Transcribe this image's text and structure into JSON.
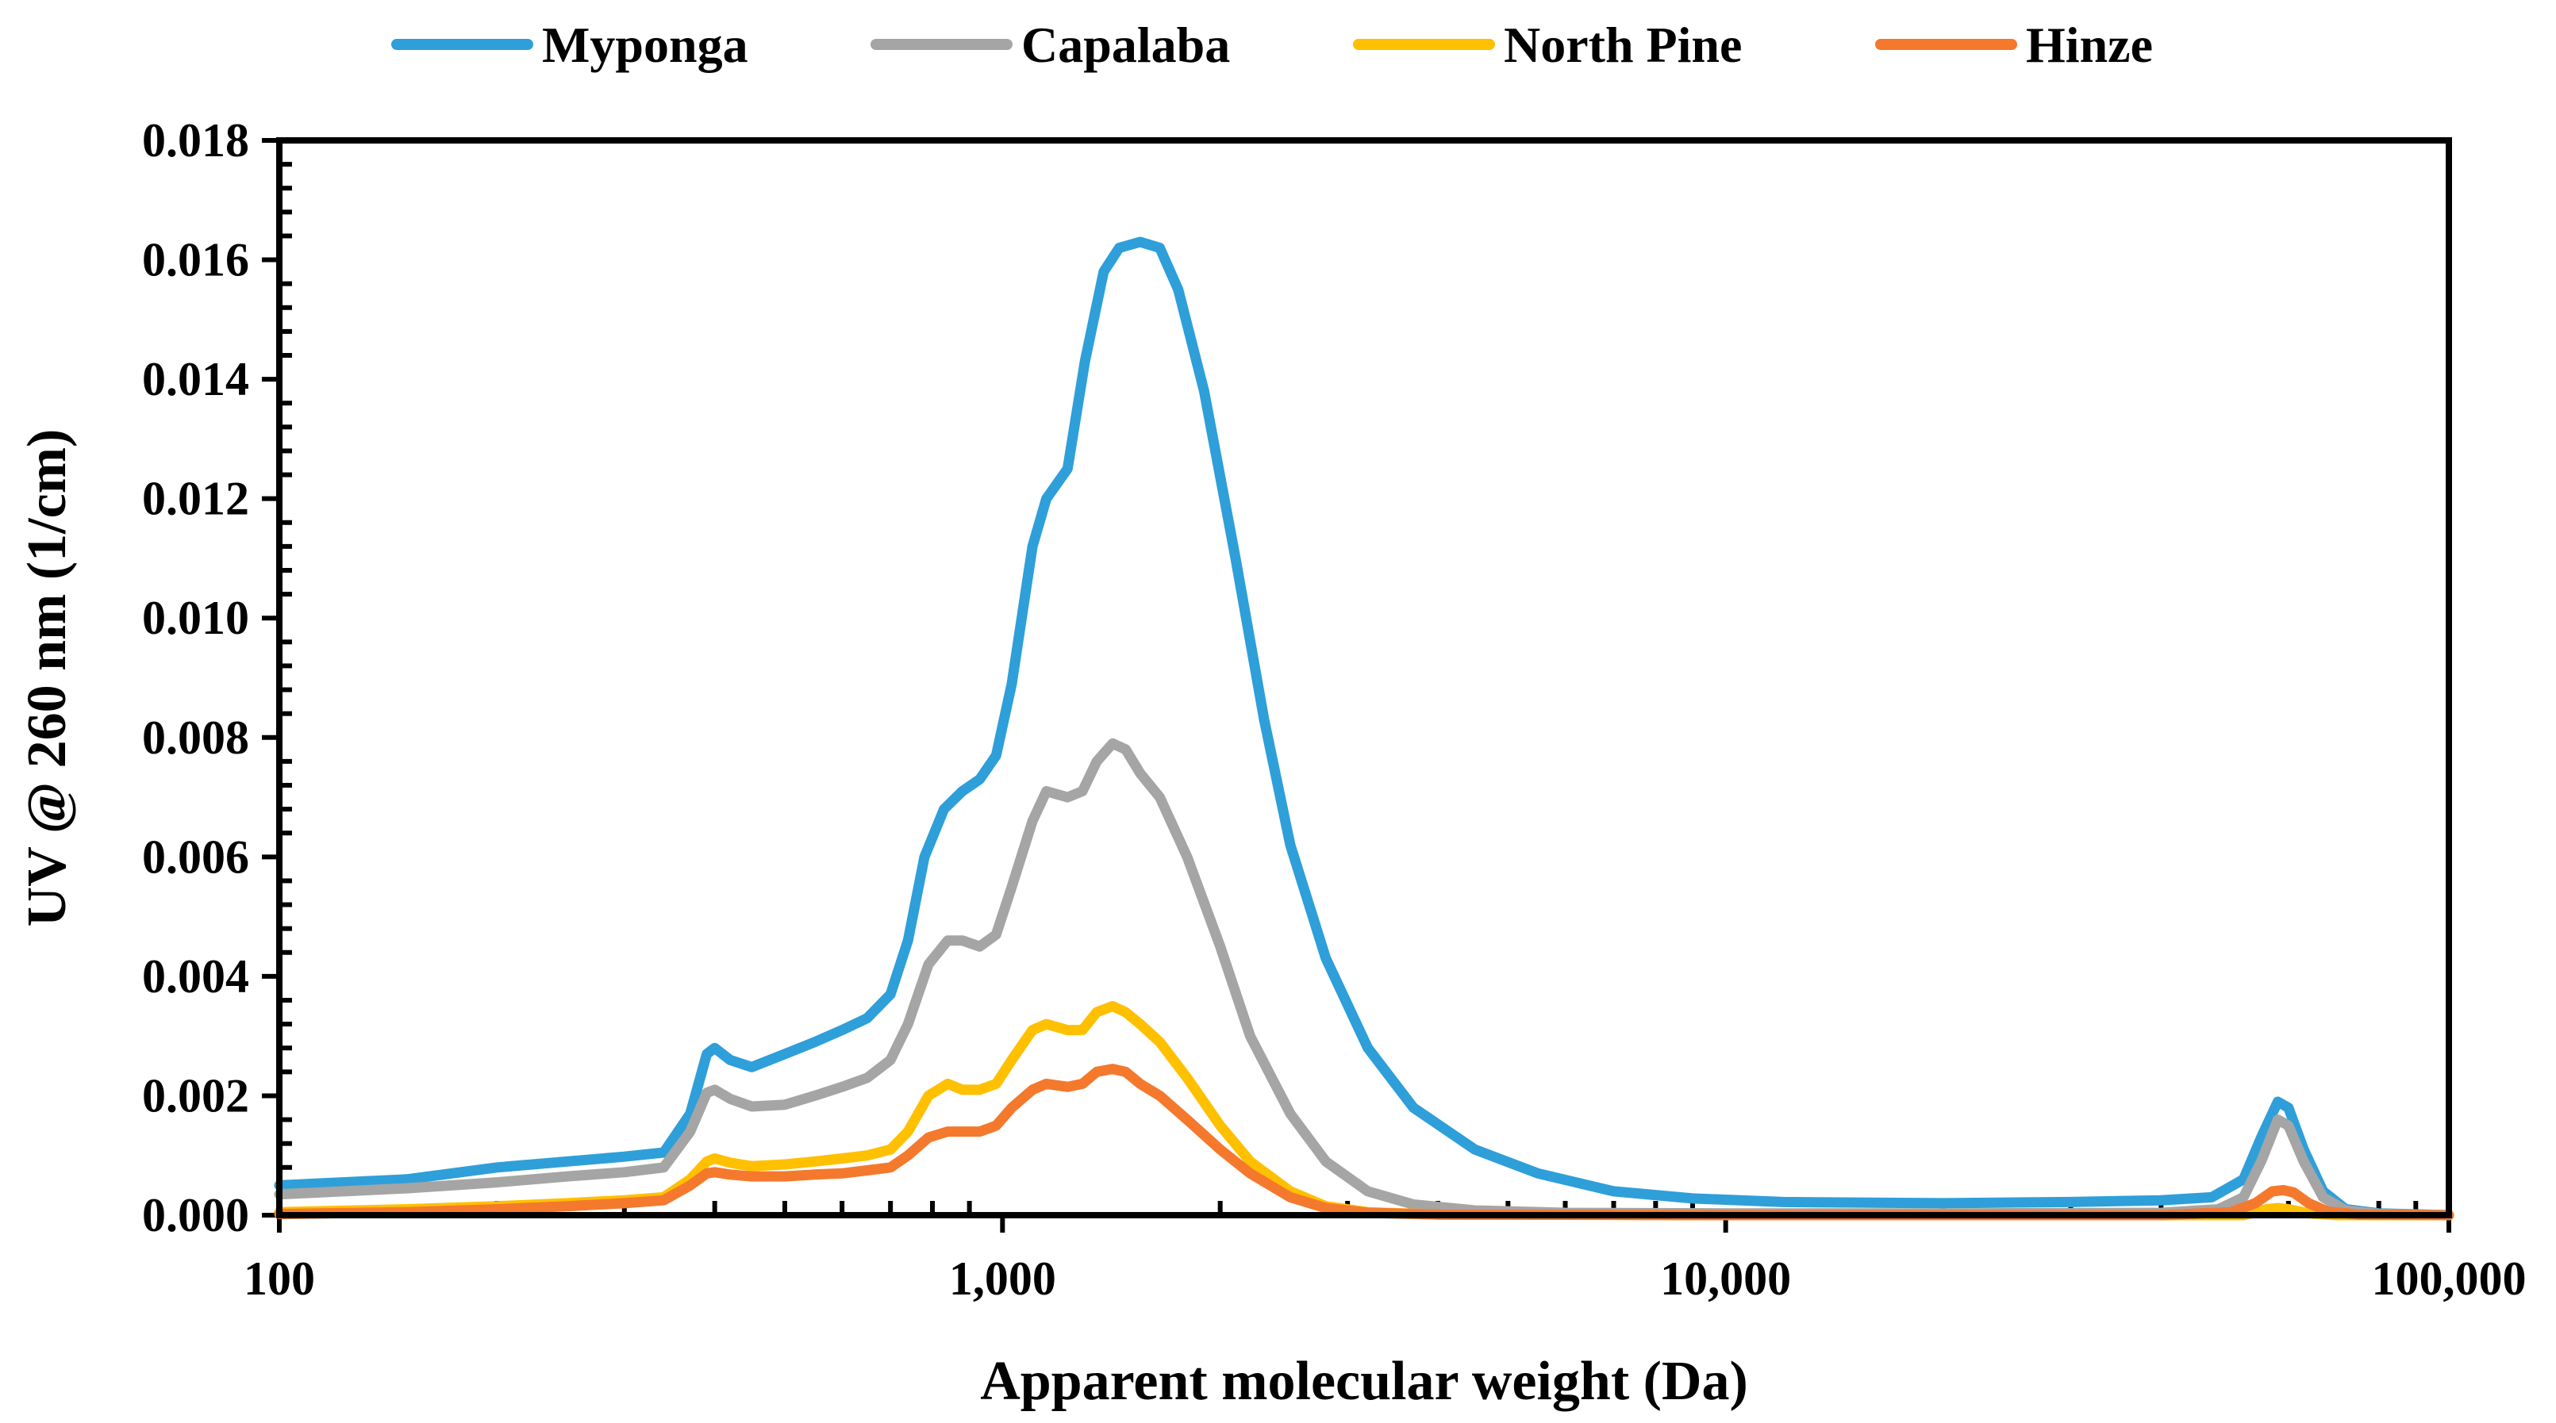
{
  "chart_data": {
    "type": "line",
    "title": "",
    "xlabel": "Apparent molecular weight (Da)",
    "ylabel": "UV @ 260 nm (1/cm)",
    "xscale": "log",
    "xlim": [
      100,
      100000
    ],
    "ylim": [
      0,
      0.018
    ],
    "xticks": [
      100,
      1000,
      10000,
      100000
    ],
    "xtick_labels": [
      "100",
      "1,000",
      "10,000",
      "100,000"
    ],
    "yticks": [
      0,
      0.002,
      0.004,
      0.006,
      0.008,
      0.01,
      0.012,
      0.014,
      0.016,
      0.018
    ],
    "ytick_labels": [
      "0.000",
      "0.002",
      "0.004",
      "0.006",
      "0.008",
      "0.010",
      "0.012",
      "0.014",
      "0.016",
      "0.018"
    ],
    "legend_position": "top-center",
    "grid": false,
    "series": [
      {
        "name": "Myponga",
        "color": "#2E9FD9",
        "points": [
          [
            100,
            0.0005
          ],
          [
            150,
            0.0006
          ],
          [
            200,
            0.0008
          ],
          [
            250,
            0.0009
          ],
          [
            300,
            0.00098
          ],
          [
            340,
            0.00105
          ],
          [
            370,
            0.0017
          ],
          [
            390,
            0.0027
          ],
          [
            400,
            0.0028
          ],
          [
            420,
            0.0026
          ],
          [
            450,
            0.00248
          ],
          [
            500,
            0.0027
          ],
          [
            550,
            0.0029
          ],
          [
            600,
            0.0031
          ],
          [
            650,
            0.0033
          ],
          [
            700,
            0.0037
          ],
          [
            740,
            0.0046
          ],
          [
            780,
            0.006
          ],
          [
            830,
            0.0068
          ],
          [
            880,
            0.0071
          ],
          [
            930,
            0.0073
          ],
          [
            980,
            0.0077
          ],
          [
            1030,
            0.0089
          ],
          [
            1100,
            0.0112
          ],
          [
            1150,
            0.012
          ],
          [
            1230,
            0.0125
          ],
          [
            1300,
            0.0143
          ],
          [
            1380,
            0.0158
          ],
          [
            1450,
            0.0162
          ],
          [
            1550,
            0.0163
          ],
          [
            1650,
            0.0162
          ],
          [
            1750,
            0.0155
          ],
          [
            1900,
            0.0138
          ],
          [
            2100,
            0.011
          ],
          [
            2300,
            0.0083
          ],
          [
            2500,
            0.0062
          ],
          [
            2800,
            0.0043
          ],
          [
            3200,
            0.0028
          ],
          [
            3700,
            0.0018
          ],
          [
            4500,
            0.0011
          ],
          [
            5500,
            0.0007
          ],
          [
            7000,
            0.0004
          ],
          [
            9000,
            0.00028
          ],
          [
            12000,
            0.00022
          ],
          [
            20000,
            0.0002
          ],
          [
            30000,
            0.00022
          ],
          [
            40000,
            0.00025
          ],
          [
            47000,
            0.0003
          ],
          [
            52000,
            0.0006
          ],
          [
            55000,
            0.0013
          ],
          [
            58000,
            0.0019
          ],
          [
            60000,
            0.0018
          ],
          [
            63000,
            0.0011
          ],
          [
            67000,
            0.0004
          ],
          [
            72000,
            0.0001
          ],
          [
            80000,
            3e-05
          ],
          [
            100000,
            0
          ]
        ]
      },
      {
        "name": "Capalaba",
        "color": "#A5A5A5",
        "points": [
          [
            100,
            0.00035
          ],
          [
            150,
            0.00045
          ],
          [
            200,
            0.00055
          ],
          [
            250,
            0.00065
          ],
          [
            300,
            0.00072
          ],
          [
            340,
            0.0008
          ],
          [
            370,
            0.0014
          ],
          [
            390,
            0.00205
          ],
          [
            400,
            0.0021
          ],
          [
            420,
            0.00195
          ],
          [
            450,
            0.00182
          ],
          [
            500,
            0.00185
          ],
          [
            550,
            0.002
          ],
          [
            600,
            0.00215
          ],
          [
            650,
            0.0023
          ],
          [
            700,
            0.0026
          ],
          [
            740,
            0.0032
          ],
          [
            790,
            0.0042
          ],
          [
            840,
            0.0046
          ],
          [
            880,
            0.0046
          ],
          [
            930,
            0.0045
          ],
          [
            980,
            0.0047
          ],
          [
            1030,
            0.0055
          ],
          [
            1100,
            0.0066
          ],
          [
            1150,
            0.0071
          ],
          [
            1230,
            0.007
          ],
          [
            1290,
            0.0071
          ],
          [
            1350,
            0.0076
          ],
          [
            1420,
            0.0079
          ],
          [
            1480,
            0.0078
          ],
          [
            1550,
            0.0074
          ],
          [
            1650,
            0.007
          ],
          [
            1800,
            0.006
          ],
          [
            2000,
            0.0045
          ],
          [
            2200,
            0.003
          ],
          [
            2500,
            0.0017
          ],
          [
            2800,
            0.0009
          ],
          [
            3200,
            0.0004
          ],
          [
            3700,
            0.00018
          ],
          [
            4500,
            8e-05
          ],
          [
            6000,
            4e-05
          ],
          [
            10000,
            3e-05
          ],
          [
            20000,
            3e-05
          ],
          [
            40000,
            4e-05
          ],
          [
            48000,
            0.0001
          ],
          [
            52000,
            0.0003
          ],
          [
            55000,
            0.0009
          ],
          [
            58000,
            0.0016
          ],
          [
            60000,
            0.0015
          ],
          [
            63000,
            0.0009
          ],
          [
            67000,
            0.0003
          ],
          [
            72000,
            8e-05
          ],
          [
            80000,
            2e-05
          ],
          [
            100000,
            0
          ]
        ]
      },
      {
        "name": "North Pine",
        "color": "#FFC000",
        "points": [
          [
            100,
            5e-05
          ],
          [
            150,
            0.0001
          ],
          [
            200,
            0.00015
          ],
          [
            250,
            0.0002
          ],
          [
            300,
            0.00025
          ],
          [
            340,
            0.0003
          ],
          [
            370,
            0.0006
          ],
          [
            390,
            0.0009
          ],
          [
            400,
            0.00095
          ],
          [
            420,
            0.00088
          ],
          [
            450,
            0.00082
          ],
          [
            500,
            0.00085
          ],
          [
            550,
            0.0009
          ],
          [
            600,
            0.00095
          ],
          [
            650,
            0.001
          ],
          [
            700,
            0.0011
          ],
          [
            740,
            0.0014
          ],
          [
            790,
            0.002
          ],
          [
            840,
            0.0022
          ],
          [
            880,
            0.0021
          ],
          [
            930,
            0.0021
          ],
          [
            980,
            0.0022
          ],
          [
            1030,
            0.0026
          ],
          [
            1100,
            0.0031
          ],
          [
            1150,
            0.0032
          ],
          [
            1230,
            0.0031
          ],
          [
            1290,
            0.0031
          ],
          [
            1350,
            0.0034
          ],
          [
            1420,
            0.0035
          ],
          [
            1480,
            0.0034
          ],
          [
            1550,
            0.0032
          ],
          [
            1650,
            0.0029
          ],
          [
            1800,
            0.0023
          ],
          [
            2000,
            0.0015
          ],
          [
            2200,
            0.0009
          ],
          [
            2500,
            0.0004
          ],
          [
            2800,
            0.00015
          ],
          [
            3200,
            5e-05
          ],
          [
            4000,
            1e-05
          ],
          [
            10000,
            0
          ],
          [
            40000,
            0
          ],
          [
            52000,
            0
          ],
          [
            56000,
            0.0001
          ],
          [
            58000,
            0.00012
          ],
          [
            60000,
            0.0001
          ],
          [
            64000,
            3e-05
          ],
          [
            70000,
            0
          ],
          [
            100000,
            0
          ]
        ]
      },
      {
        "name": "Hinze",
        "color": "#F4792D",
        "points": [
          [
            100,
            2e-05
          ],
          [
            150,
            5e-05
          ],
          [
            200,
            0.0001
          ],
          [
            250,
            0.00015
          ],
          [
            300,
            0.0002
          ],
          [
            340,
            0.00025
          ],
          [
            370,
            0.0005
          ],
          [
            390,
            0.0007
          ],
          [
            400,
            0.00072
          ],
          [
            420,
            0.00068
          ],
          [
            450,
            0.00065
          ],
          [
            500,
            0.00065
          ],
          [
            550,
            0.00068
          ],
          [
            600,
            0.0007
          ],
          [
            650,
            0.00075
          ],
          [
            700,
            0.0008
          ],
          [
            740,
            0.001
          ],
          [
            790,
            0.0013
          ],
          [
            840,
            0.0014
          ],
          [
            880,
            0.0014
          ],
          [
            930,
            0.0014
          ],
          [
            980,
            0.0015
          ],
          [
            1030,
            0.0018
          ],
          [
            1100,
            0.0021
          ],
          [
            1150,
            0.0022
          ],
          [
            1230,
            0.00215
          ],
          [
            1290,
            0.0022
          ],
          [
            1350,
            0.0024
          ],
          [
            1420,
            0.00245
          ],
          [
            1480,
            0.0024
          ],
          [
            1550,
            0.0022
          ],
          [
            1650,
            0.002
          ],
          [
            1800,
            0.0016
          ],
          [
            2000,
            0.0011
          ],
          [
            2200,
            0.0007
          ],
          [
            2500,
            0.0003
          ],
          [
            2800,
            0.00012
          ],
          [
            3200,
            4e-05
          ],
          [
            4000,
            1e-05
          ],
          [
            10000,
            0
          ],
          [
            40000,
            0
          ],
          [
            50000,
            5e-05
          ],
          [
            54000,
            0.0002
          ],
          [
            57000,
            0.0004
          ],
          [
            59000,
            0.00042
          ],
          [
            61000,
            0.00038
          ],
          [
            64000,
            0.0002
          ],
          [
            68000,
            6e-05
          ],
          [
            75000,
            1e-05
          ],
          [
            100000,
            0
          ]
        ]
      }
    ]
  }
}
